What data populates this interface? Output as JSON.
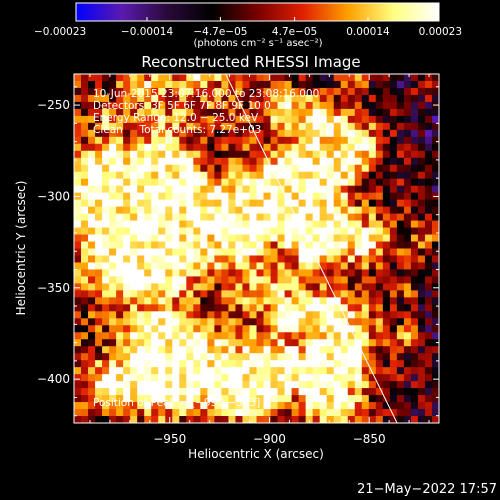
{
  "chart_data": {
    "type": "heatmap",
    "title": "Reconstructed RHESSI Image",
    "xlabel": "Heliocentric X (arcsec)",
    "ylabel": "Heliocentric Y (arcsec)",
    "xlim": [
      -998,
      -815
    ],
    "ylim": [
      -424,
      -233
    ],
    "x_ticks": [
      -950,
      -900,
      -850
    ],
    "x_tick_labels": [
      "−950",
      "−900",
      "−850"
    ],
    "y_ticks": [
      -400,
      -350,
      -300,
      -250
    ],
    "y_tick_labels": [
      "−400",
      "−350",
      "−300",
      "−250"
    ],
    "colorbar": {
      "range": [
        -0.00023,
        0.00023
      ],
      "ticks": [
        -0.00023,
        -0.00014,
        -4.7e-05,
        4.7e-05,
        0.00014,
        0.00023
      ],
      "tick_labels": [
        "−0.00023",
        "−0.00014",
        "−4.7e−05",
        "4.7e−05",
        "0.00014",
        "0.00023"
      ],
      "units_label": "(photons cm⁻² s⁻¹ asec⁻²)",
      "colors": [
        "#0000ff",
        "#5a1ab0",
        "#2a0a3a",
        "#000000",
        "#7a0000",
        "#e02000",
        "#ffa000",
        "#ffff80",
        "#ffffff"
      ]
    },
    "limb_line": [
      [
        -922,
        -233
      ],
      [
        -836,
        -424
      ]
    ],
    "peak": [
      -990,
      -343
    ],
    "grid": false,
    "legend": "none"
  },
  "annotations": {
    "lines": [
      "10-Jun-2015 23:07:16.000 to 23:08:16.000",
      "Detectors: 3F 5F 6F 7F 8F 9F 10 0",
      "Energy Range: 12.0 − 25.0 keV",
      "Clean     Total counts: 7.27e+03"
    ],
    "peak_label": "Position of Peak = [−990,−343]"
  },
  "footer": {
    "date": "21−May−2022 17:57"
  }
}
